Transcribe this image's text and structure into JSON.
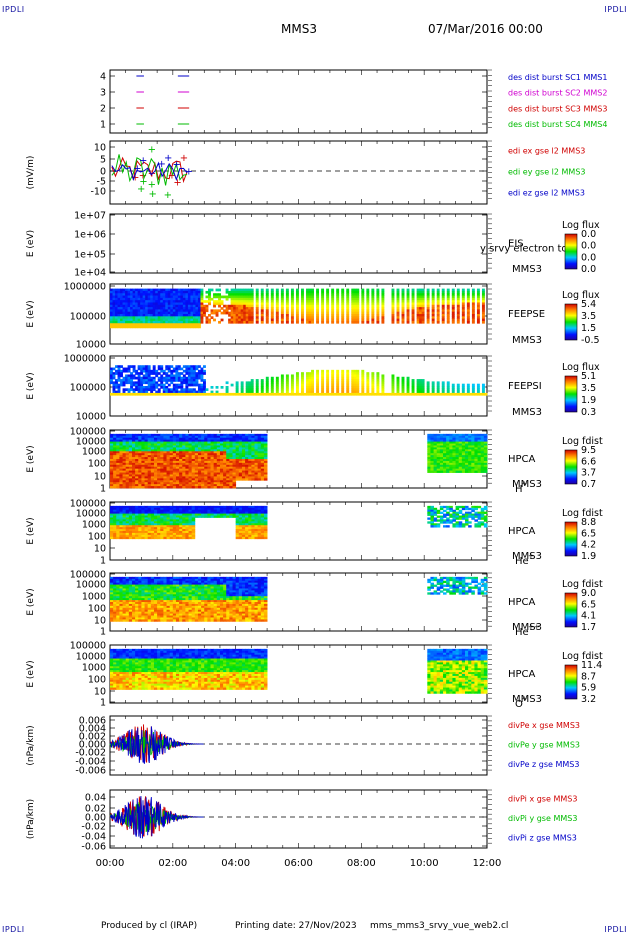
{
  "header": {
    "corner_tl": "IPDLI",
    "corner_tr": "IPDLI",
    "corner_bl": "IPDLI",
    "corner_br": "IPDLI",
    "spacecraft": "MMS3",
    "datetime": "07/Mar/2016 00:00"
  },
  "footer": {
    "producer": "Produced by cl (IRAP)",
    "printing_date": "Printing date: 27/Nov/2023",
    "file": "mms_mms3_srvy_vue_web2.cl"
  },
  "colors": {
    "red": "#d00000",
    "green": "#00bb00",
    "blue": "#0000c8",
    "magenta": "#d000d0"
  },
  "chart_data": [
    {
      "type": "scatter",
      "panel": "burst",
      "yticks": [
        "4",
        "3",
        "2",
        "1"
      ],
      "ylim": [
        0.5,
        4.5
      ],
      "series": [
        {
          "name": "des dist burst SC1 MMS1",
          "color": "#0000c8",
          "y": 4
        },
        {
          "name": "des dist burst SC2 MMS2",
          "color": "#d000d0",
          "y": 3
        },
        {
          "name": "des dist burst SC3 MMS3",
          "color": "#d00000",
          "y": 2
        },
        {
          "name": "des dist burst SC4 MMS4",
          "color": "#00bb00",
          "y": 1
        }
      ]
    },
    {
      "type": "line",
      "panel": "edi",
      "ylabel": "(mV/m)",
      "yticks": [
        "10",
        "5",
        "0",
        "-5",
        "-10"
      ],
      "ylim": [
        -15,
        15
      ],
      "series": [
        {
          "name": "edi ex gse l2 MMS3",
          "color": "#d00000"
        },
        {
          "name": "edi ey gse l2 MMS3",
          "color": "#00bb00"
        },
        {
          "name": "edi ez gse l2 MMS3",
          "color": "#0000c8"
        }
      ]
    },
    {
      "type": "heatmap",
      "panel": "eis",
      "ylabel": "E (eV)",
      "yticks": [
        "1e+07",
        "1e+06",
        "1e+05",
        "1e+04"
      ],
      "instrument": "EIS",
      "spacecraft": "MMS3",
      "overlay_text": "y srvy electron to",
      "colorbar_title": "Log flux",
      "colorbar_ticks": [
        "0.0",
        "0.0",
        "0.0",
        "0.0"
      ]
    },
    {
      "type": "heatmap",
      "panel": "feepse",
      "ylabel": "E (eV)",
      "yticks": [
        "1000000",
        "100000",
        "10000"
      ],
      "instrument": "FEEPSE",
      "spacecraft": "MMS3",
      "colorbar_title": "Log flux",
      "colorbar_ticks": [
        "5.4",
        "3.5",
        "1.5",
        "-0.5"
      ]
    },
    {
      "type": "heatmap",
      "panel": "feepsi",
      "ylabel": "E (eV)",
      "yticks": [
        "1000000",
        "100000",
        "10000"
      ],
      "instrument": "FEEPSI",
      "spacecraft": "MMS3",
      "colorbar_title": "Log flux",
      "colorbar_ticks": [
        "5.1",
        "3.5",
        "1.9",
        "0.3"
      ]
    },
    {
      "type": "heatmap",
      "panel": "hpca-h",
      "ylabel": "E (eV)",
      "yticks": [
        "100000",
        "10000",
        "1000",
        "100",
        "10",
        "1"
      ],
      "instrument": "HPCA",
      "spacecraft": "MMS3",
      "species": "H",
      "charge": "+",
      "colorbar_title": "Log fdist",
      "colorbar_ticks": [
        "9.5",
        "6.6",
        "3.7",
        "0.7"
      ]
    },
    {
      "type": "heatmap",
      "panel": "hpca-he",
      "ylabel": "E (eV)",
      "yticks": [
        "100000",
        "10000",
        "1000",
        "100",
        "10",
        "1"
      ],
      "instrument": "HPCA",
      "spacecraft": "MMS3",
      "species": "He",
      "charge": "+",
      "colorbar_title": "Log fdist",
      "colorbar_ticks": [
        "8.8",
        "6.5",
        "4.2",
        "1.9"
      ]
    },
    {
      "type": "heatmap",
      "panel": "hpca-he2",
      "ylabel": "E (eV)",
      "yticks": [
        "100000",
        "10000",
        "1000",
        "100",
        "10",
        "1"
      ],
      "instrument": "HPCA",
      "spacecraft": "MMS3",
      "species": "He",
      "charge": "++",
      "colorbar_title": "Log fdist",
      "colorbar_ticks": [
        "9.0",
        "6.5",
        "4.1",
        "1.7"
      ]
    },
    {
      "type": "heatmap",
      "panel": "hpca-o",
      "ylabel": "E (eV)",
      "yticks": [
        "100000",
        "10000",
        "1000",
        "100",
        "10",
        "1"
      ],
      "instrument": "HPCA",
      "spacecraft": "MMS3",
      "species": "O",
      "charge": "+",
      "colorbar_title": "Log fdist",
      "colorbar_ticks": [
        "11.4",
        "8.7",
        "5.9",
        "3.2"
      ]
    },
    {
      "type": "line",
      "panel": "divpe",
      "ylabel": "(nPa/km)",
      "yticks": [
        "0.006",
        "0.004",
        "0.002",
        "0.000",
        "-0.002",
        "-0.004",
        "-0.006"
      ],
      "ylim": [
        -0.007,
        0.007
      ],
      "series": [
        {
          "name": "divPe x gse MMS3",
          "color": "#d00000"
        },
        {
          "name": "divPe y gse MMS3",
          "color": "#00bb00"
        },
        {
          "name": "divPe z gse MMS3",
          "color": "#0000c8"
        }
      ]
    },
    {
      "type": "line",
      "panel": "divpi",
      "ylabel": "(nPa/km)",
      "yticks": [
        "0.04",
        "0.02",
        "0.00",
        "-0.02",
        "-0.04",
        "-0.06"
      ],
      "ylim": [
        -0.065,
        0.05
      ],
      "series": [
        {
          "name": "divPi x gse MMS3",
          "color": "#d00000"
        },
        {
          "name": "divPi y gse MMS3",
          "color": "#00bb00"
        },
        {
          "name": "divPi z gse MMS3",
          "color": "#0000c8"
        }
      ]
    }
  ],
  "xaxis": {
    "ticks": [
      "00:00",
      "02:00",
      "04:00",
      "06:00",
      "08:00",
      "10:00",
      "12:00"
    ]
  }
}
